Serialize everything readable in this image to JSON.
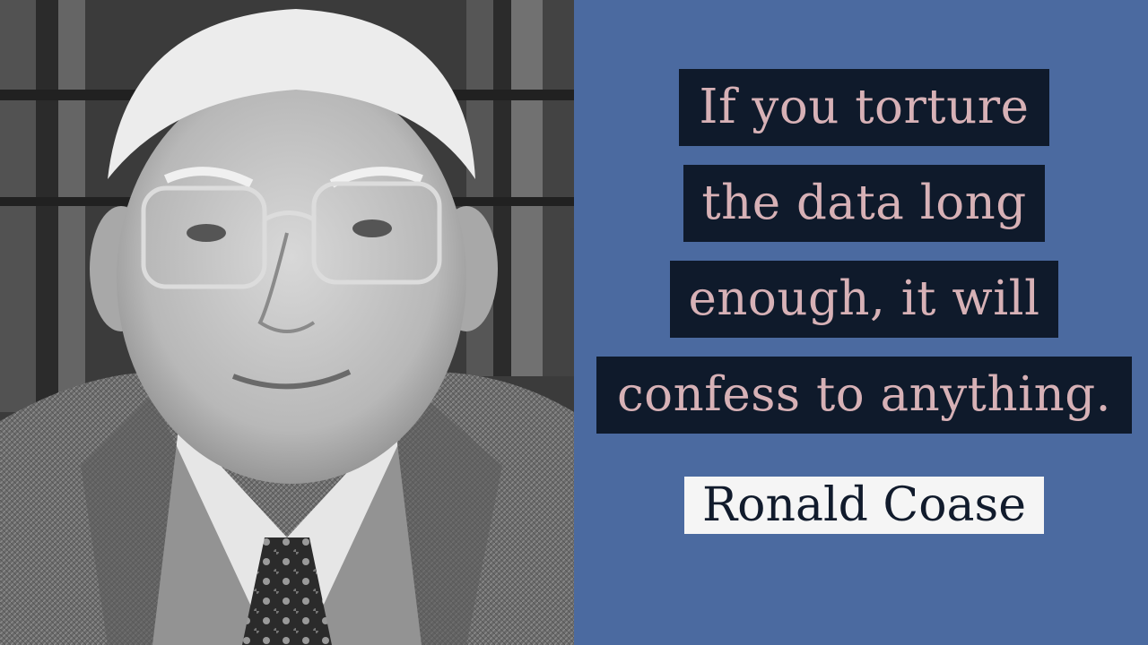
{
  "quote": {
    "lines": [
      "If you torture",
      "the data long",
      "enough, it will",
      "confess to anything."
    ],
    "author": "Ronald Coase"
  },
  "photo": {
    "subject": "portrait-photo",
    "style": "black-and-white"
  },
  "colors": {
    "panel_bg": "#4b6aa0",
    "line_bg": "#0f1a2b",
    "quote_text": "#d7b1b6",
    "author_bg": "#f5f5f5",
    "author_text": "#111b2c"
  }
}
